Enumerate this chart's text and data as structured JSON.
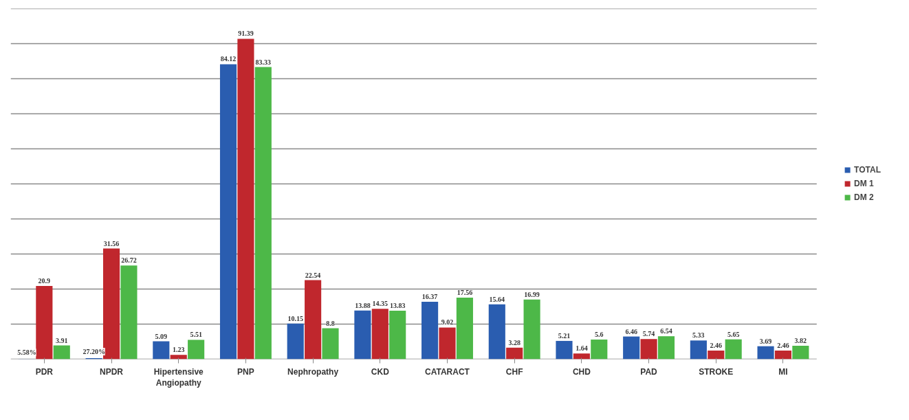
{
  "chart_data": {
    "type": "bar",
    "categories": [
      "PDR",
      "NPDR",
      "Hipertensive Angiopathy",
      "PNP",
      "Nephropathy",
      "CKD",
      "CATARACT",
      "CHF",
      "CHD",
      "PAD",
      "STROKE",
      "MI"
    ],
    "series": [
      {
        "name": "TOTAL",
        "color": "#2a5db0",
        "values": [
          0.0558,
          0.272,
          5.09,
          84.12,
          10.15,
          13.88,
          16.37,
          15.64,
          5.21,
          6.46,
          5.33,
          3.69
        ],
        "value_labels": [
          "5.58%",
          "27.20%",
          "5.09",
          "84.12",
          "10.15",
          "13.88",
          "16.37",
          "15.64",
          "5.21",
          "6.46",
          "5.33",
          "3.69"
        ]
      },
      {
        "name": "DM 1",
        "color": "#c0272d",
        "values": [
          20.9,
          31.56,
          1.23,
          91.39,
          22.54,
          14.35,
          9.02,
          3.28,
          1.64,
          5.74,
          2.46,
          2.46
        ],
        "value_labels": [
          "20.9",
          "31.56",
          "1.23",
          "91.39",
          "22.54",
          "14.35",
          "9.02",
          "3.28",
          "1.64",
          "5.74",
          "2.46",
          "2.46"
        ]
      },
      {
        "name": "DM 2",
        "color": "#4db848",
        "values": [
          3.91,
          26.72,
          5.51,
          83.33,
          8.8,
          13.83,
          17.56,
          16.99,
          5.6,
          6.54,
          5.65,
          3.82
        ],
        "value_labels": [
          "3.91",
          "26.72",
          "5.51",
          "83.33",
          "8.8",
          "13.83",
          "17.56",
          "16.99",
          "5.6",
          "6.54",
          "5.65",
          "3.82"
        ]
      }
    ],
    "ylim": [
      0,
      100
    ],
    "yticks": [
      {
        "value": 0,
        "label": null
      },
      {
        "value": 10,
        "label": null
      },
      {
        "value": 20,
        "label": null
      },
      {
        "value": 30,
        "label": null
      },
      {
        "value": 40,
        "label": null
      },
      {
        "value": 50,
        "label": null
      },
      {
        "value": 60,
        "label": null
      },
      {
        "value": 70,
        "label": null
      },
      {
        "value": 80,
        "label": null
      },
      {
        "value": 90,
        "label": null
      },
      {
        "value": 100,
        "label": null
      }
    ],
    "tick_labels": "x",
    "grid": "y",
    "legend": "right"
  }
}
